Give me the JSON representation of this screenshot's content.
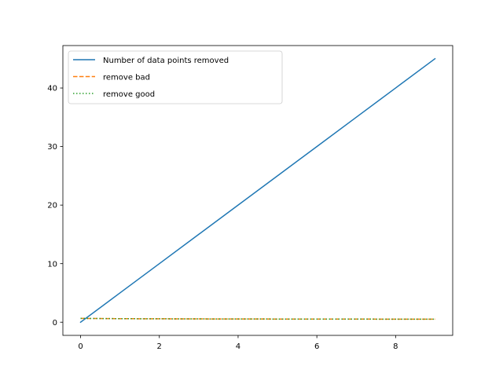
{
  "chart_data": {
    "type": "line",
    "title": "",
    "xlabel": "",
    "ylabel": "",
    "xlim": [
      -0.45,
      9.45
    ],
    "ylim": [
      -2.25,
      47.25
    ],
    "xticks": [
      0,
      2,
      4,
      6,
      8
    ],
    "yticks": [
      0,
      10,
      20,
      30,
      40
    ],
    "grid": false,
    "legend_position": "top-left",
    "x": [
      0,
      1,
      2,
      3,
      4,
      5,
      6,
      7,
      8,
      9
    ],
    "series": [
      {
        "name": "Number of data points removed",
        "values": [
          0,
          5,
          10,
          15,
          20,
          25,
          30,
          35,
          40,
          45
        ],
        "color": "#1f77b4",
        "linestyle": "solid"
      },
      {
        "name": "remove bad",
        "values": [
          0.65,
          0.6,
          0.58,
          0.56,
          0.55,
          0.54,
          0.53,
          0.53,
          0.52,
          0.52
        ],
        "color": "#ff7f0e",
        "linestyle": "dashed"
      },
      {
        "name": "remove good",
        "values": [
          0.65,
          0.6,
          0.58,
          0.56,
          0.55,
          0.54,
          0.53,
          0.53,
          0.52,
          0.52
        ],
        "color": "#2ca02c",
        "linestyle": "dotted"
      }
    ]
  }
}
